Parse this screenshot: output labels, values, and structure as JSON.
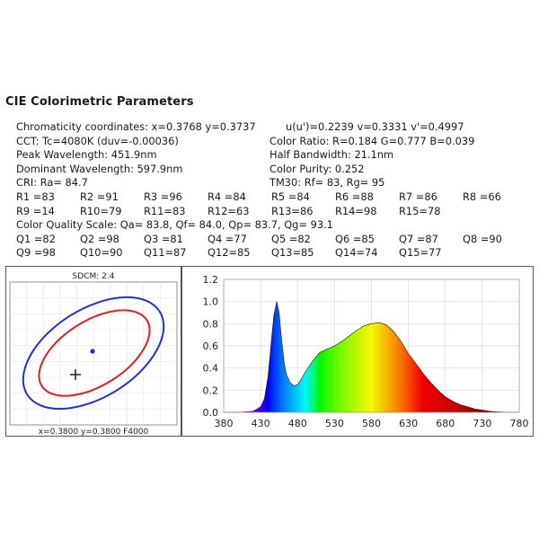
{
  "header": {
    "title": "CIE Colorimetric Parameters"
  },
  "params": {
    "chromaticity": "Chromaticity coordinates: x=0.3768 y=0.3737",
    "uv": "u(u')=0.2239 v=0.3331 v'=0.4997",
    "cct": "CCT: Tc=4080K (duv=-0.00036)",
    "color_ratio": "Color Ratio: R=0.184  G=0.777  B=0.039",
    "peak": "Peak Wavelength: 451.9nm",
    "half_bw": "Half Bandwidth: 21.1nm",
    "dominant": "Dominant Wavelength: 597.9nm",
    "purity": "Color Purity: 0.252",
    "cri": "CRI: Ra= 84.7",
    "tm30": "TM30: Rf=   83, Rg=   95",
    "r_row1": [
      "R1 =83",
      "R2 =91",
      "R3 =96",
      "R4 =84",
      "R5 =84",
      "R6 =88",
      "R7 =86",
      "R8 =66"
    ],
    "r_row2": [
      "R9 =14",
      "R10=79",
      "R11=83",
      "R12=63",
      "R13=86",
      "R14=98",
      "R15=78"
    ],
    "cqs": "Color Quality Scale: Qa= 83.8, Qf= 84.0, Qp= 83.7, Qg= 93.1",
    "q_row1": [
      "Q1 =82",
      "Q2 =98",
      "Q3 =81",
      "Q4 =77",
      "Q5 =82",
      "Q6 =85",
      "Q7 =87",
      "Q8 =90"
    ],
    "q_row2": [
      "Q9 =98",
      "Q10=90",
      "Q11=87",
      "Q12=85",
      "Q13=85",
      "Q14=74",
      "Q15=77"
    ]
  },
  "ellipse_panel": {
    "sdcm": "SDCM:   2.4",
    "footer": "x=0.3800 y=0.3800 F4000",
    "outer_color": "#1f2fd6",
    "inner_color": "#e02020",
    "point_color": "#1f2fd6"
  },
  "chart_data": {
    "type": "area",
    "xlabel": "",
    "ylabel": "",
    "xlim": [
      380,
      780
    ],
    "ylim": [
      0,
      1.2
    ],
    "xticks": [
      380,
      430,
      480,
      530,
      580,
      630,
      680,
      730,
      780
    ],
    "yticks": [
      0.0,
      0.2,
      0.4,
      0.6,
      0.8,
      1.0,
      1.2
    ],
    "grid": true,
    "fill": "spectral-gradient",
    "series": [
      {
        "x": [
          380,
          400,
          410,
          420,
          430,
          435,
          440,
          445,
          448,
          451.9,
          455,
          458,
          462,
          465,
          470,
          475,
          480,
          485,
          490,
          500,
          510,
          520,
          530,
          540,
          550,
          560,
          570,
          580,
          590,
          600,
          610,
          620,
          630,
          640,
          650,
          660,
          670,
          680,
          690,
          700,
          710,
          720,
          730,
          740,
          750,
          760,
          770,
          780
        ],
        "values": [
          0.0,
          0.0,
          0.005,
          0.01,
          0.05,
          0.12,
          0.32,
          0.68,
          0.88,
          1.0,
          0.9,
          0.68,
          0.44,
          0.34,
          0.27,
          0.24,
          0.25,
          0.3,
          0.36,
          0.46,
          0.54,
          0.57,
          0.6,
          0.64,
          0.69,
          0.74,
          0.78,
          0.8,
          0.81,
          0.79,
          0.73,
          0.64,
          0.53,
          0.44,
          0.35,
          0.27,
          0.2,
          0.14,
          0.1,
          0.07,
          0.05,
          0.03,
          0.02,
          0.01,
          0.005,
          0.002,
          0.001,
          0.0
        ]
      }
    ]
  }
}
